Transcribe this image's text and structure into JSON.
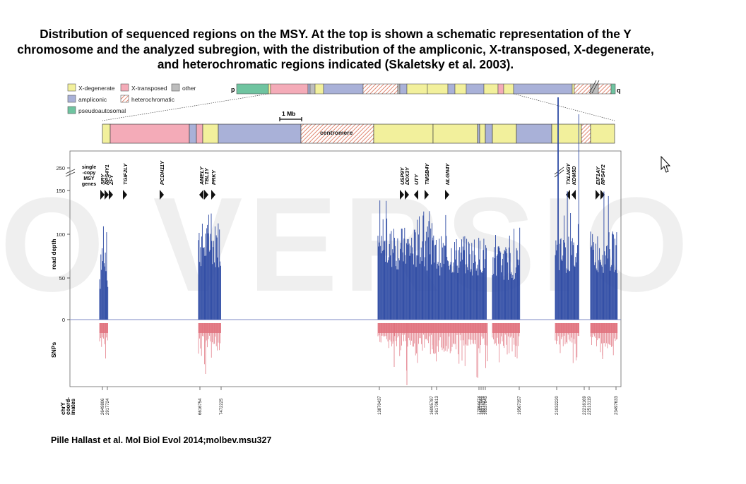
{
  "slide": {
    "title": "Distribution of sequenced regions on the MSY. At the top is shown a schematic representation of the Y chromosome and the analyzed subregion, with the distribution of the ampliconic, X-transposed, X-degenerate, and heterochromatic regions indicated (Skaletsky et al. 2003).",
    "citation": "Pille Hallast et al. Mol Biol Evol 2014;molbev.msu327",
    "watermark": "O VERSIO"
  },
  "legend": {
    "x_degenerate": "X-degenerate",
    "x_transposed": "X-transposed",
    "other": "other",
    "ampliconic": "ampliconic",
    "heterochromatic": "heterochromatic",
    "pseudoautosomal": "pseudoautosomal"
  },
  "ideogram": {
    "p_label": "p",
    "q_label": "q",
    "scale_label": "1 Mb",
    "centromere_label": "centromere"
  },
  "colors": {
    "x_degenerate": "#f2f09c",
    "x_transposed": "#f4abb8",
    "ampliconic": "#a9b1d8",
    "other": "#bdbdbd",
    "pseudoautosomal": "#6fc4a0",
    "heterochromatic": "#d96a4f",
    "reads": "#2b48a3",
    "snps": "#e0707c"
  },
  "chart_data": {
    "type": "bar",
    "ylabel": "read depth",
    "snp_label": "SNPs",
    "single_copy_label": [
      "single",
      "-copy",
      "MSY",
      "genes"
    ],
    "y_ticks": [
      "0",
      "50",
      "100",
      "150",
      "250"
    ],
    "x_axis_label": [
      "chrY",
      "coord-",
      "inates"
    ],
    "coordinates": [
      "2649806",
      "2917724",
      "6616754",
      "7472225",
      "13870437",
      "16095787",
      "16170613",
      "17064474",
      "16071084",
      "16271274",
      "16537845",
      "19567357",
      "21032220",
      "22216169",
      "22513119",
      "23497633"
    ],
    "genes": [
      {
        "name": "SRY",
        "dir": "right"
      },
      {
        "name": "RPS4Y1",
        "dir": "right"
      },
      {
        "name": "ZFY",
        "dir": "right"
      },
      {
        "name": "TGIF2LY",
        "dir": "right"
      },
      {
        "name": "PCDH11Y",
        "dir": "right"
      },
      {
        "name": "AMELY",
        "dir": "left"
      },
      {
        "name": "TBL1Y",
        "dir": "right"
      },
      {
        "name": "PRKY",
        "dir": "right"
      },
      {
        "name": "USP9Y",
        "dir": "right"
      },
      {
        "name": "DDX3Y",
        "dir": "right"
      },
      {
        "name": "UTY",
        "dir": "left"
      },
      {
        "name": "TMSB4Y",
        "dir": "right"
      },
      {
        "name": "NLGN4Y",
        "dir": "right"
      },
      {
        "name": "TXLNGY",
        "dir": "left"
      },
      {
        "name": "KDM5D",
        "dir": "left"
      },
      {
        "name": "EIF1AY",
        "dir": "right"
      },
      {
        "name": "RPS4Y2",
        "dir": "right"
      }
    ],
    "blocks": [
      {
        "name": "block-1",
        "max_depth": 115,
        "typical_depth": 95,
        "snp_depth": 1.0
      },
      {
        "name": "block-2",
        "max_depth": 145,
        "typical_depth": 105,
        "snp_depth": 1.4
      },
      {
        "name": "block-3",
        "max_depth": 135,
        "typical_depth": 100,
        "snp_depth": 1.2
      },
      {
        "name": "block-4",
        "max_depth": 125,
        "typical_depth": 90,
        "snp_depth": 1.6
      },
      {
        "name": "block-5",
        "max_depth": 105,
        "typical_depth": 80,
        "snp_depth": 1.0
      },
      {
        "name": "block-6",
        "max_depth": 250,
        "typical_depth": 90,
        "snp_depth": 1.0
      },
      {
        "name": "block-7",
        "max_depth": 145,
        "typical_depth": 95,
        "snp_depth": 1.0
      }
    ],
    "ylim": [
      0,
      250
    ]
  }
}
